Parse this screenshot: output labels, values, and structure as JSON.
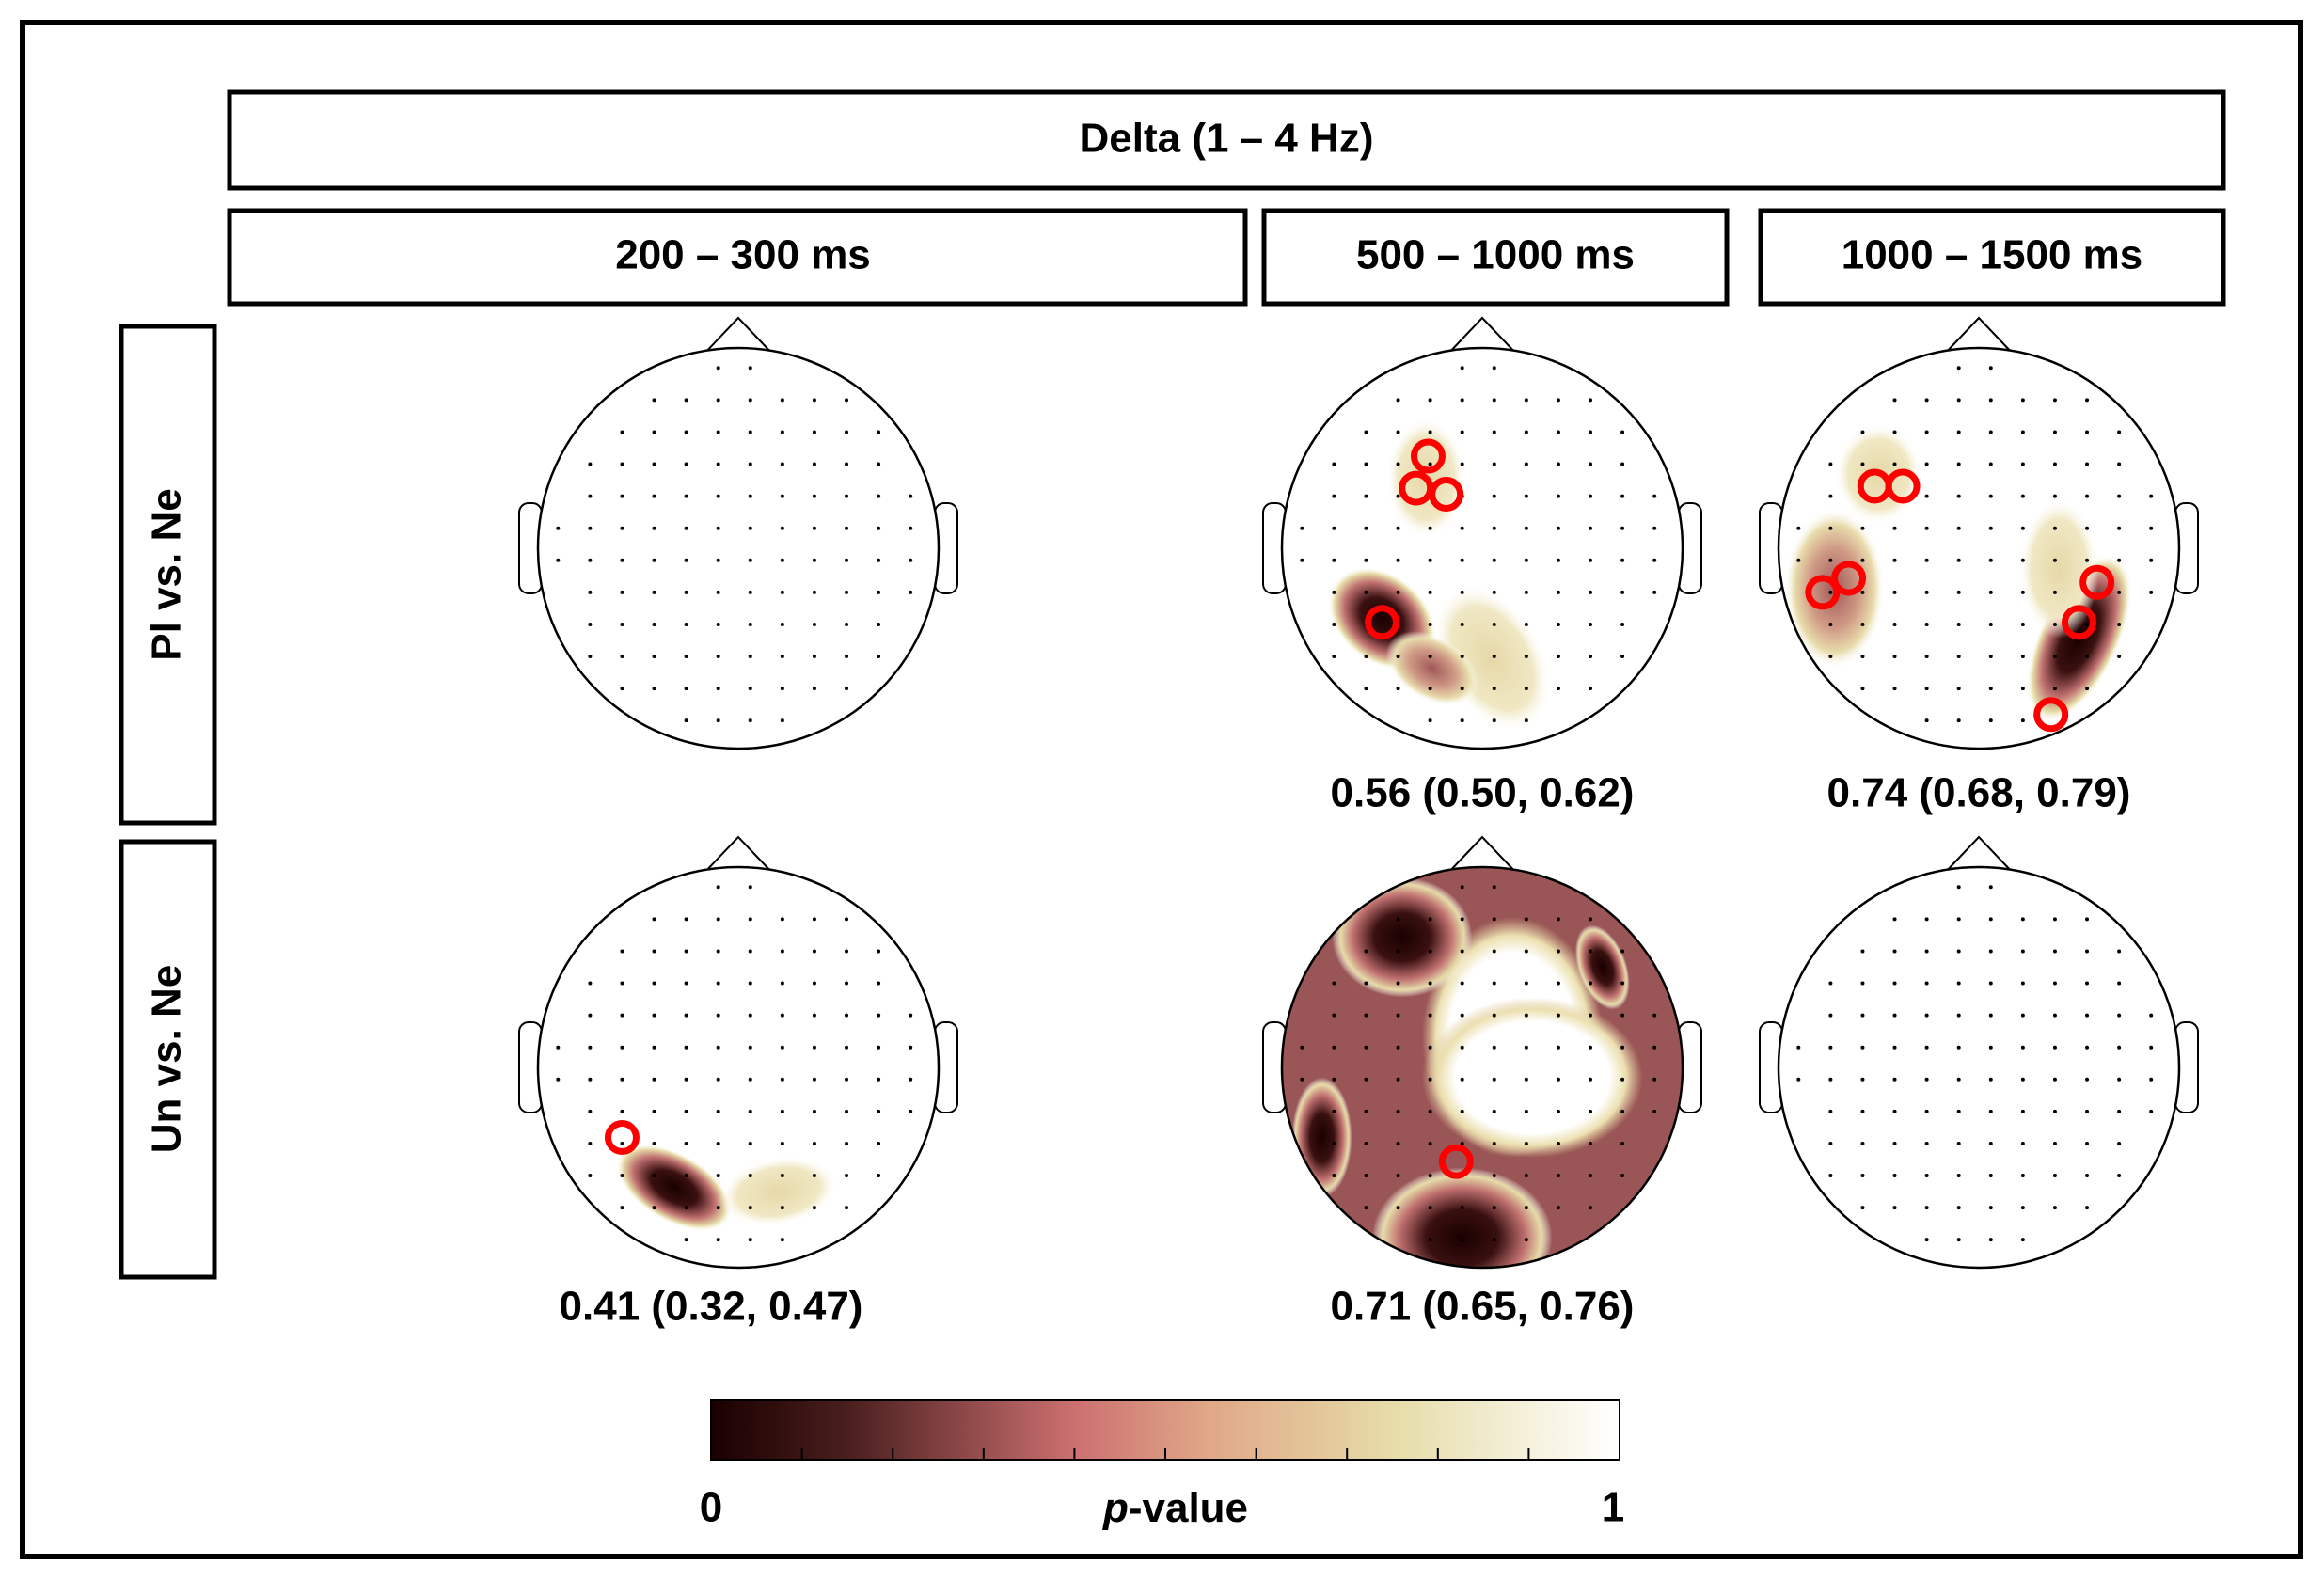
{
  "header": {
    "title": "Delta (1 – 4 Hz)"
  },
  "columns": [
    "200 – 300 ms",
    "500 – 1000  ms",
    "1000 – 1500  ms"
  ],
  "rows": [
    "Pl vs. Ne",
    "Un vs. Ne"
  ],
  "cells": [
    [
      "",
      "0.56 (0.50, 0.62)",
      "0.74 (0.68, 0.79)"
    ],
    [
      "0.41 (0.32, 0.47)",
      "0.71 (0.65, 0.76)",
      ""
    ]
  ],
  "colorbar": {
    "min_label": "0",
    "max_label": "1",
    "label_italic": "p",
    "label_rest": "-value"
  }
}
